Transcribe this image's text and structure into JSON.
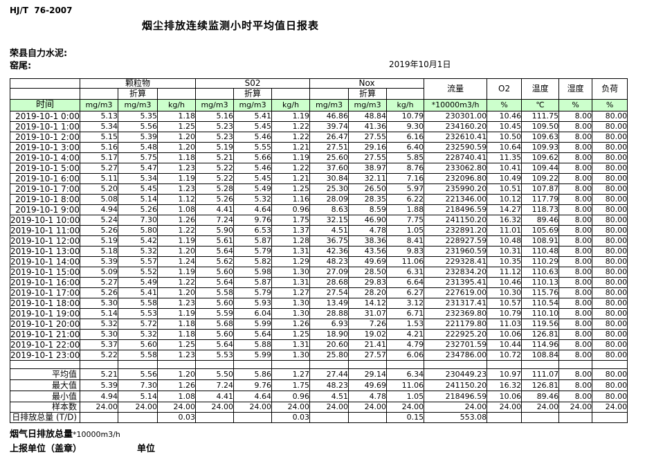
{
  "page": {
    "doc_code": "HJ/T  76-2007",
    "title": "烟尘排放连续监测小时平均值日报表",
    "company": "荣县自力水泥:",
    "location": "窑尾:",
    "date": "2019年10月1日"
  },
  "colors": {
    "header_green": "#ccffcc"
  },
  "table": {
    "header": {
      "time_label": "时间",
      "groups": [
        {
          "label": "颗粒物"
        },
        {
          "label": "S02"
        },
        {
          "label": "Nox"
        }
      ],
      "converted_label": "折算",
      "flow_label": "流量",
      "o2_label": "O2",
      "temp_label": "温度",
      "humidity_label": "湿度",
      "load_label": "负荷",
      "units": [
        "mg/m3",
        "mg/m3",
        "kg/h",
        "mg/m3",
        "mg/m3",
        "kg/h",
        "mg/m3",
        "mg/m3",
        "kg/h",
        "*10000m3/h",
        "%",
        "℃",
        "%",
        "%"
      ]
    },
    "rows": [
      {
        "time": "2019-10-1  0:00",
        "values": [
          "5.13",
          "5.35",
          "1.18",
          "5.16",
          "5.41",
          "1.19",
          "46.86",
          "48.84",
          "10.79",
          "230301.00",
          "10.46",
          "111.75",
          "8.00",
          "80.00"
        ]
      },
      {
        "time": "2019-10-1  1:00",
        "values": [
          "5.34",
          "5.56",
          "1.25",
          "5.23",
          "5.45",
          "1.22",
          "39.74",
          "41.36",
          "9.30",
          "234160.20",
          "10.45",
          "109.50",
          "8.00",
          "80.00"
        ]
      },
      {
        "time": "2019-10-1  2:00",
        "values": [
          "5.15",
          "5.39",
          "1.20",
          "5.23",
          "5.46",
          "1.22",
          "26.47",
          "27.55",
          "6.16",
          "232610.41",
          "10.50",
          "109.63",
          "8.00",
          "80.00"
        ]
      },
      {
        "time": "2019-10-1  3:00",
        "values": [
          "5.16",
          "5.48",
          "1.20",
          "5.19",
          "5.55",
          "1.21",
          "27.51",
          "29.16",
          "6.40",
          "232590.59",
          "10.64",
          "109.93",
          "8.00",
          "80.00"
        ]
      },
      {
        "time": "2019-10-1  4:00",
        "values": [
          "5.17",
          "5.75",
          "1.18",
          "5.21",
          "5.66",
          "1.19",
          "25.60",
          "27.55",
          "5.85",
          "228740.41",
          "11.35",
          "109.62",
          "8.00",
          "80.00"
        ]
      },
      {
        "time": "2019-10-1  5:00",
        "values": [
          "5.27",
          "5.47",
          "1.23",
          "5.22",
          "5.46",
          "1.22",
          "37.60",
          "38.97",
          "8.76",
          "233062.80",
          "10.41",
          "109.44",
          "8.00",
          "80.00"
        ]
      },
      {
        "time": "2019-10-1  6:00",
        "values": [
          "5.11",
          "5.34",
          "1.19",
          "5.22",
          "5.45",
          "1.21",
          "30.84",
          "32.11",
          "7.16",
          "232096.80",
          "10.49",
          "109.22",
          "8.00",
          "80.00"
        ]
      },
      {
        "time": "2019-10-1  7:00",
        "values": [
          "5.20",
          "5.45",
          "1.23",
          "5.28",
          "5.49",
          "1.25",
          "25.30",
          "26.50",
          "5.97",
          "235990.20",
          "10.51",
          "107.87",
          "8.00",
          "80.00"
        ]
      },
      {
        "time": "2019-10-1  8:00",
        "values": [
          "5.08",
          "5.14",
          "1.12",
          "5.26",
          "5.32",
          "1.16",
          "28.09",
          "28.35",
          "6.22",
          "221346.00",
          "10.12",
          "117.79",
          "8.00",
          "80.00"
        ]
      },
      {
        "time": "2019-10-1  9:00",
        "values": [
          "4.94",
          "5.26",
          "1.08",
          "4.41",
          "4.64",
          "0.96",
          "8.63",
          "8.59",
          "1.88",
          "218496.59",
          "14.27",
          "118.73",
          "8.00",
          "80.00"
        ]
      },
      {
        "time": "2019-10-1 10:00",
        "values": [
          "5.24",
          "7.30",
          "1.26",
          "7.24",
          "9.76",
          "1.75",
          "32.15",
          "46.90",
          "7.75",
          "241150.20",
          "16.32",
          "89.46",
          "8.00",
          "80.00"
        ]
      },
      {
        "time": "2019-10-1 11:00",
        "values": [
          "5.26",
          "5.80",
          "1.22",
          "5.90",
          "6.53",
          "1.37",
          "4.51",
          "4.78",
          "1.05",
          "232891.20",
          "11.01",
          "105.69",
          "8.00",
          "80.00"
        ]
      },
      {
        "time": "2019-10-1 12:00",
        "values": [
          "5.19",
          "5.42",
          "1.19",
          "5.61",
          "5.87",
          "1.28",
          "36.75",
          "38.36",
          "8.41",
          "228927.59",
          "10.48",
          "108.91",
          "8.00",
          "80.00"
        ]
      },
      {
        "time": "2019-10-1 13:00",
        "values": [
          "5.18",
          "5.32",
          "1.20",
          "5.64",
          "5.79",
          "1.31",
          "42.36",
          "43.56",
          "9.83",
          "231960.59",
          "10.31",
          "110.48",
          "8.00",
          "80.00"
        ]
      },
      {
        "time": "2019-10-1 14:00",
        "values": [
          "5.39",
          "5.57",
          "1.24",
          "5.62",
          "5.82",
          "1.29",
          "48.23",
          "49.69",
          "11.06",
          "229328.41",
          "10.35",
          "110.29",
          "8.00",
          "80.00"
        ]
      },
      {
        "time": "2019-10-1 15:00",
        "values": [
          "5.09",
          "5.52",
          "1.19",
          "5.60",
          "5.98",
          "1.30",
          "27.09",
          "28.50",
          "6.31",
          "232834.20",
          "11.12",
          "110.63",
          "8.00",
          "80.00"
        ]
      },
      {
        "time": "2019-10-1 16:00",
        "values": [
          "5.27",
          "5.49",
          "1.22",
          "5.64",
          "5.87",
          "1.31",
          "28.68",
          "29.83",
          "6.64",
          "231395.41",
          "10.46",
          "110.13",
          "8.00",
          "80.00"
        ]
      },
      {
        "time": "2019-10-1 17:00",
        "values": [
          "5.26",
          "5.41",
          "1.20",
          "5.58",
          "5.79",
          "1.27",
          "27.54",
          "28.20",
          "6.27",
          "227619.00",
          "10.30",
          "115.76",
          "8.00",
          "80.00"
        ]
      },
      {
        "time": "2019-10-1 18:00",
        "values": [
          "5.30",
          "5.58",
          "1.23",
          "5.60",
          "5.93",
          "1.30",
          "13.49",
          "14.12",
          "3.12",
          "231317.41",
          "10.57",
          "110.54",
          "8.00",
          "80.00"
        ]
      },
      {
        "time": "2019-10-1 19:00",
        "values": [
          "5.14",
          "5.53",
          "1.19",
          "5.59",
          "6.04",
          "1.30",
          "28.88",
          "31.07",
          "6.71",
          "232369.80",
          "10.79",
          "110.10",
          "8.00",
          "80.00"
        ]
      },
      {
        "time": "2019-10-1 20:00",
        "values": [
          "5.32",
          "5.72",
          "1.18",
          "5.68",
          "5.99",
          "1.26",
          "6.93",
          "7.26",
          "1.53",
          "221179.80",
          "11.03",
          "119.56",
          "8.00",
          "80.00"
        ]
      },
      {
        "time": "2019-10-1 21:00",
        "values": [
          "5.30",
          "5.32",
          "1.18",
          "5.60",
          "5.64",
          "1.25",
          "18.90",
          "19.02",
          "4.21",
          "222925.20",
          "10.06",
          "126.81",
          "8.00",
          "80.00"
        ]
      },
      {
        "time": "2019-10-1 22:00",
        "values": [
          "5.37",
          "5.60",
          "1.25",
          "5.64",
          "5.88",
          "1.31",
          "20.60",
          "21.41",
          "4.79",
          "232701.59",
          "10.44",
          "114.96",
          "8.00",
          "80.00"
        ]
      },
      {
        "time": "2019-10-1 23:00",
        "values": [
          "5.22",
          "5.58",
          "1.23",
          "5.53",
          "5.99",
          "1.30",
          "25.80",
          "27.57",
          "6.06",
          "234786.00",
          "10.72",
          "108.84",
          "8.00",
          "80.00"
        ]
      }
    ],
    "summary": [
      {
        "label": "平均值",
        "values": [
          "5.21",
          "5.56",
          "1.20",
          "5.50",
          "5.86",
          "1.27",
          "27.44",
          "29.14",
          "6.34",
          "230449.23",
          "10.97",
          "111.07",
          "8.00",
          "80.00"
        ]
      },
      {
        "label": "最大值",
        "values": [
          "5.39",
          "7.30",
          "1.26",
          "7.24",
          "9.76",
          "1.75",
          "48.23",
          "49.69",
          "11.06",
          "241150.20",
          "16.32",
          "126.81",
          "8.00",
          "80.00"
        ]
      },
      {
        "label": "最小值",
        "values": [
          "4.94",
          "5.14",
          "1.08",
          "4.41",
          "4.64",
          "0.96",
          "4.51",
          "4.78",
          "1.05",
          "218496.59",
          "10.06",
          "89.46",
          "8.00",
          "80.00"
        ]
      },
      {
        "label": "样本数",
        "values": [
          "24.00",
          "24.00",
          "24.00",
          "24.00",
          "24.00",
          "24.00",
          "24.00",
          "24.00",
          "24.00",
          "24.00",
          "24.00",
          "24.00",
          "24.00",
          "24.00"
        ]
      },
      {
        "label": "日排放总量 (T/D)",
        "values": [
          "",
          "",
          "0.03",
          "",
          "",
          "0.03",
          "",
          "",
          "0.15",
          "553.08",
          "",
          "",
          "",
          ""
        ]
      }
    ]
  },
  "footer": {
    "flue_total_label": "烟气日排放总量",
    "flue_total_unit": "*10000m3/h",
    "report_unit_label": "上报单位（盖章）",
    "unit_label": "单位"
  }
}
